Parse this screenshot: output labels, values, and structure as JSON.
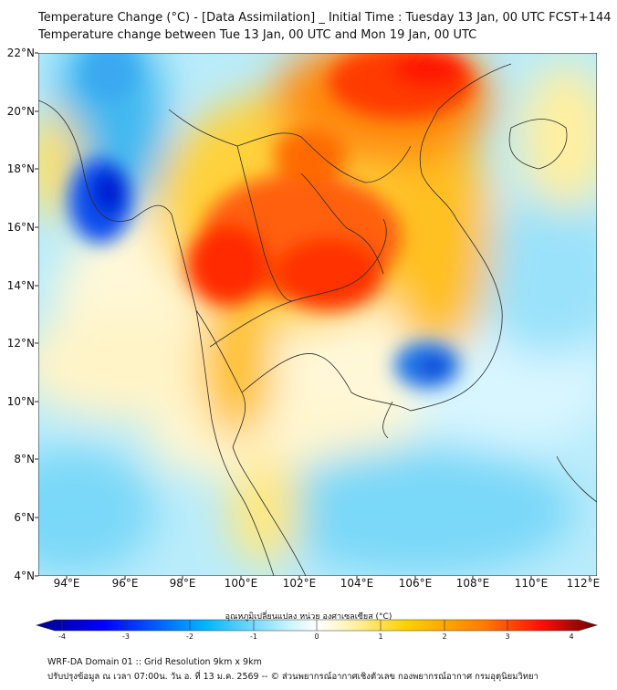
{
  "title": {
    "line1": "Temperature Change (°C) - [Data Assimilation] _ Initial Time : Tuesday 13 Jan, 00 UTC FCST+144",
    "line2": "Temperature change between Tue 13 Jan, 00 UTC and Mon 19 Jan, 00 UTC"
  },
  "axes": {
    "lat_labels": [
      "22°N",
      "20°N",
      "18°N",
      "16°N",
      "14°N",
      "12°N",
      "10°N",
      "8°N",
      "6°N",
      "4°N"
    ],
    "lon_labels": [
      "94°E",
      "96°E",
      "98°E",
      "100°E",
      "102°E",
      "104°E",
      "106°E",
      "108°E",
      "110°E",
      "112°E"
    ]
  },
  "colorbar": {
    "label": "อุณหภูมิเปลี่ยนแปลง หน่วย องศาเซลเซียส (°C)",
    "ticks": [
      "-4",
      "-3",
      "-2",
      "-1",
      "0",
      "1",
      "2",
      "3",
      "4"
    ],
    "min": -4,
    "max": 4
  },
  "footer": {
    "line1": "WRF-DA Domain 01 :: Grid Resolution 9km x 9km",
    "line2": "ปรับปรุงข้อมูล ณ เวลา 07:00น. วัน อ. ที่ 13 ม.ค. 2569 -- © ส่วนพยากรณ์อากาศเชิงตัวเลข กองพยากรณ์อากาศ กรมอุตุนิยมวิทยา"
  },
  "colors": {
    "cold_max": "#00008b",
    "cold": "#1e90ff",
    "neutral": "#ffffff",
    "warm": "#ffd000",
    "hot": "#ff2000",
    "hot_max": "#7a0000"
  }
}
